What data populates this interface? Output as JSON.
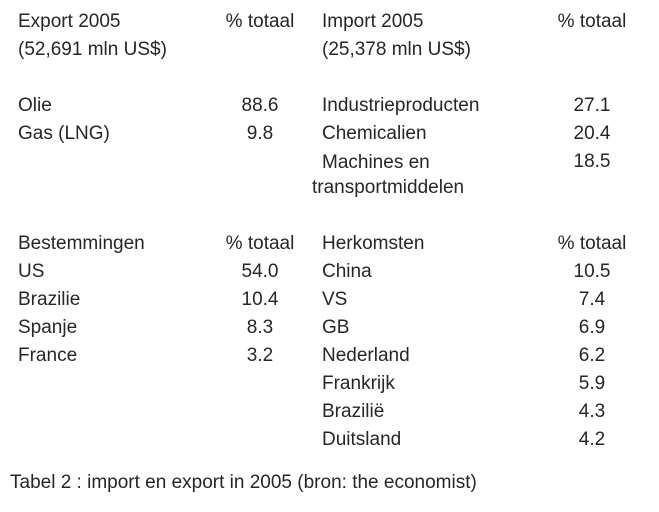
{
  "document": {
    "background": "#ffffff",
    "text_color": "#262626",
    "caption": "Tabel 2 : import en export in 2005 (bron: the economist)"
  },
  "export_section": {
    "title": "Export 2005",
    "subtitle": "(52,691 mln US$)",
    "col_header": "% totaal",
    "rows": [
      {
        "label": "Olie",
        "value": "88.6"
      },
      {
        "label": "Gas (LNG)",
        "value": "9.8"
      }
    ]
  },
  "import_section": {
    "title": "Import 2005",
    "subtitle": "(25,378 mln US$)",
    "col_header": "% totaal",
    "rows": [
      {
        "label": "Industrieproducten",
        "value": "27.1"
      },
      {
        "label": "Chemicalien",
        "value": "20.4"
      },
      {
        "label": "Machines en transportmiddelen",
        "value": "18.5"
      }
    ]
  },
  "destinations_section": {
    "header": "Bestemmingen",
    "col_header": "% totaal",
    "rows": [
      {
        "label": "US",
        "value": "54.0"
      },
      {
        "label": "Brazilie",
        "value": "10.4"
      },
      {
        "label": "Spanje",
        "value": "8.3"
      },
      {
        "label": "France",
        "value": "3.2"
      }
    ]
  },
  "origins_section": {
    "header": "Herkomsten",
    "col_header": "% totaal",
    "rows": [
      {
        "label": "China",
        "value": "10.5"
      },
      {
        "label": "VS",
        "value": "7.4"
      },
      {
        "label": "GB",
        "value": "6.9"
      },
      {
        "label": "Nederland",
        "value": "6.2"
      },
      {
        "label": "Frankrijk",
        "value": "5.9"
      },
      {
        "label": "Brazilië",
        "value": "4.3"
      },
      {
        "label": "Duitsland",
        "value": "4.2"
      }
    ]
  }
}
